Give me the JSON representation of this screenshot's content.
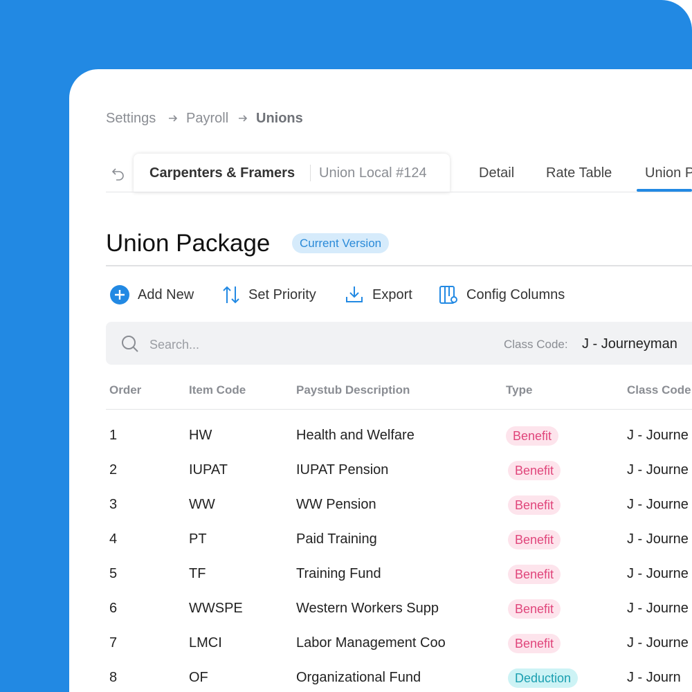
{
  "breadcrumb": [
    "Settings",
    "Payroll",
    "Unions"
  ],
  "tabs": {
    "active_card": {
      "title": "Carpenters & Framers",
      "subtitle": "Union Local #124"
    },
    "items": [
      "Detail",
      "Rate Table",
      "Union P"
    ]
  },
  "title": "Union Package",
  "badge": "Current Version",
  "toolbar": [
    "Add New",
    "Set Priority",
    "Export",
    "Config Columns"
  ],
  "search": {
    "placeholder": "Search...",
    "filter_label": "Class Code:",
    "filter_value": "J - Journeyman"
  },
  "table": {
    "columns": [
      "Order",
      "Item Code",
      "Paystub Description",
      "Type",
      "Class Code"
    ],
    "rows": [
      [
        "1",
        "HW",
        "Health and Welfare",
        "Benefit",
        "J - Journe"
      ],
      [
        "2",
        "IUPAT",
        "IUPAT Pension",
        "Benefit",
        "J - Journe"
      ],
      [
        "3",
        "WW",
        "WW Pension",
        "Benefit",
        "J - Journe"
      ],
      [
        "4",
        "PT",
        "Paid Training",
        "Benefit",
        "J - Journe"
      ],
      [
        "5",
        "TF",
        "Training Fund",
        "Benefit",
        "J - Journe"
      ],
      [
        "6",
        "WWSPE",
        "Western Workers Supp",
        "Benefit",
        "J - Journe"
      ],
      [
        "7",
        "LMCI",
        "Labor Management Coo",
        "Benefit",
        "J - Journe"
      ],
      [
        "8",
        "OF",
        "Organizational Fund",
        "Deduction",
        "J - Journ"
      ]
    ]
  }
}
